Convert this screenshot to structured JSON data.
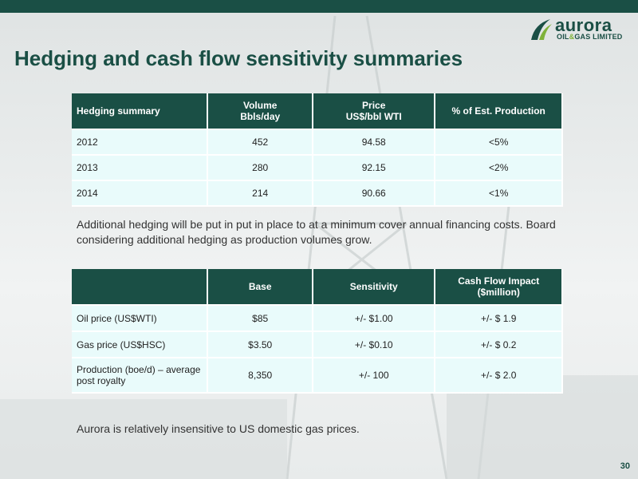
{
  "slide": {
    "title": "Hedging and cash flow sensitivity summaries",
    "page_number": "30",
    "brand": {
      "name": "aurora",
      "sub_part1": "OIL",
      "sub_amp": "&",
      "sub_part2": "GAS LIMITED",
      "colors": {
        "primary": "#1a4f45",
        "accent": "#7fb23a"
      }
    }
  },
  "hedging_table": {
    "headers": [
      "Hedging summary",
      "Volume\nBbls/day",
      "Price\nUS$/bbl WTI",
      "% of Est. Production"
    ],
    "rows": [
      [
        "2012",
        "452",
        "94.58",
        "<5%"
      ],
      [
        "2013",
        "280",
        "92.15",
        "<2%"
      ],
      [
        "2014",
        "214",
        "90.66",
        "<1%"
      ]
    ]
  },
  "notes": {
    "hedging": "Additional hedging will be put in put in place to at a minimum cover annual financing costs. Board considering additional hedging as production volumes grow.",
    "gas": "Aurora is relatively insensitive to US domestic gas prices."
  },
  "sensitivity_table": {
    "headers": [
      "",
      "Base",
      "Sensitivity",
      "Cash Flow Impact\n($million)"
    ],
    "rows": [
      [
        "Oil price (US$WTI)",
        "$85",
        "+/- $1.00",
        "+/- $ 1.9"
      ],
      [
        "Gas price (US$HSC)",
        "$3.50",
        "+/- $0.10",
        "+/- $ 0.2"
      ],
      [
        "Production (boe/d) – average post royalty",
        "8,350",
        "+/- 100",
        "+/- $ 2.0"
      ]
    ]
  }
}
